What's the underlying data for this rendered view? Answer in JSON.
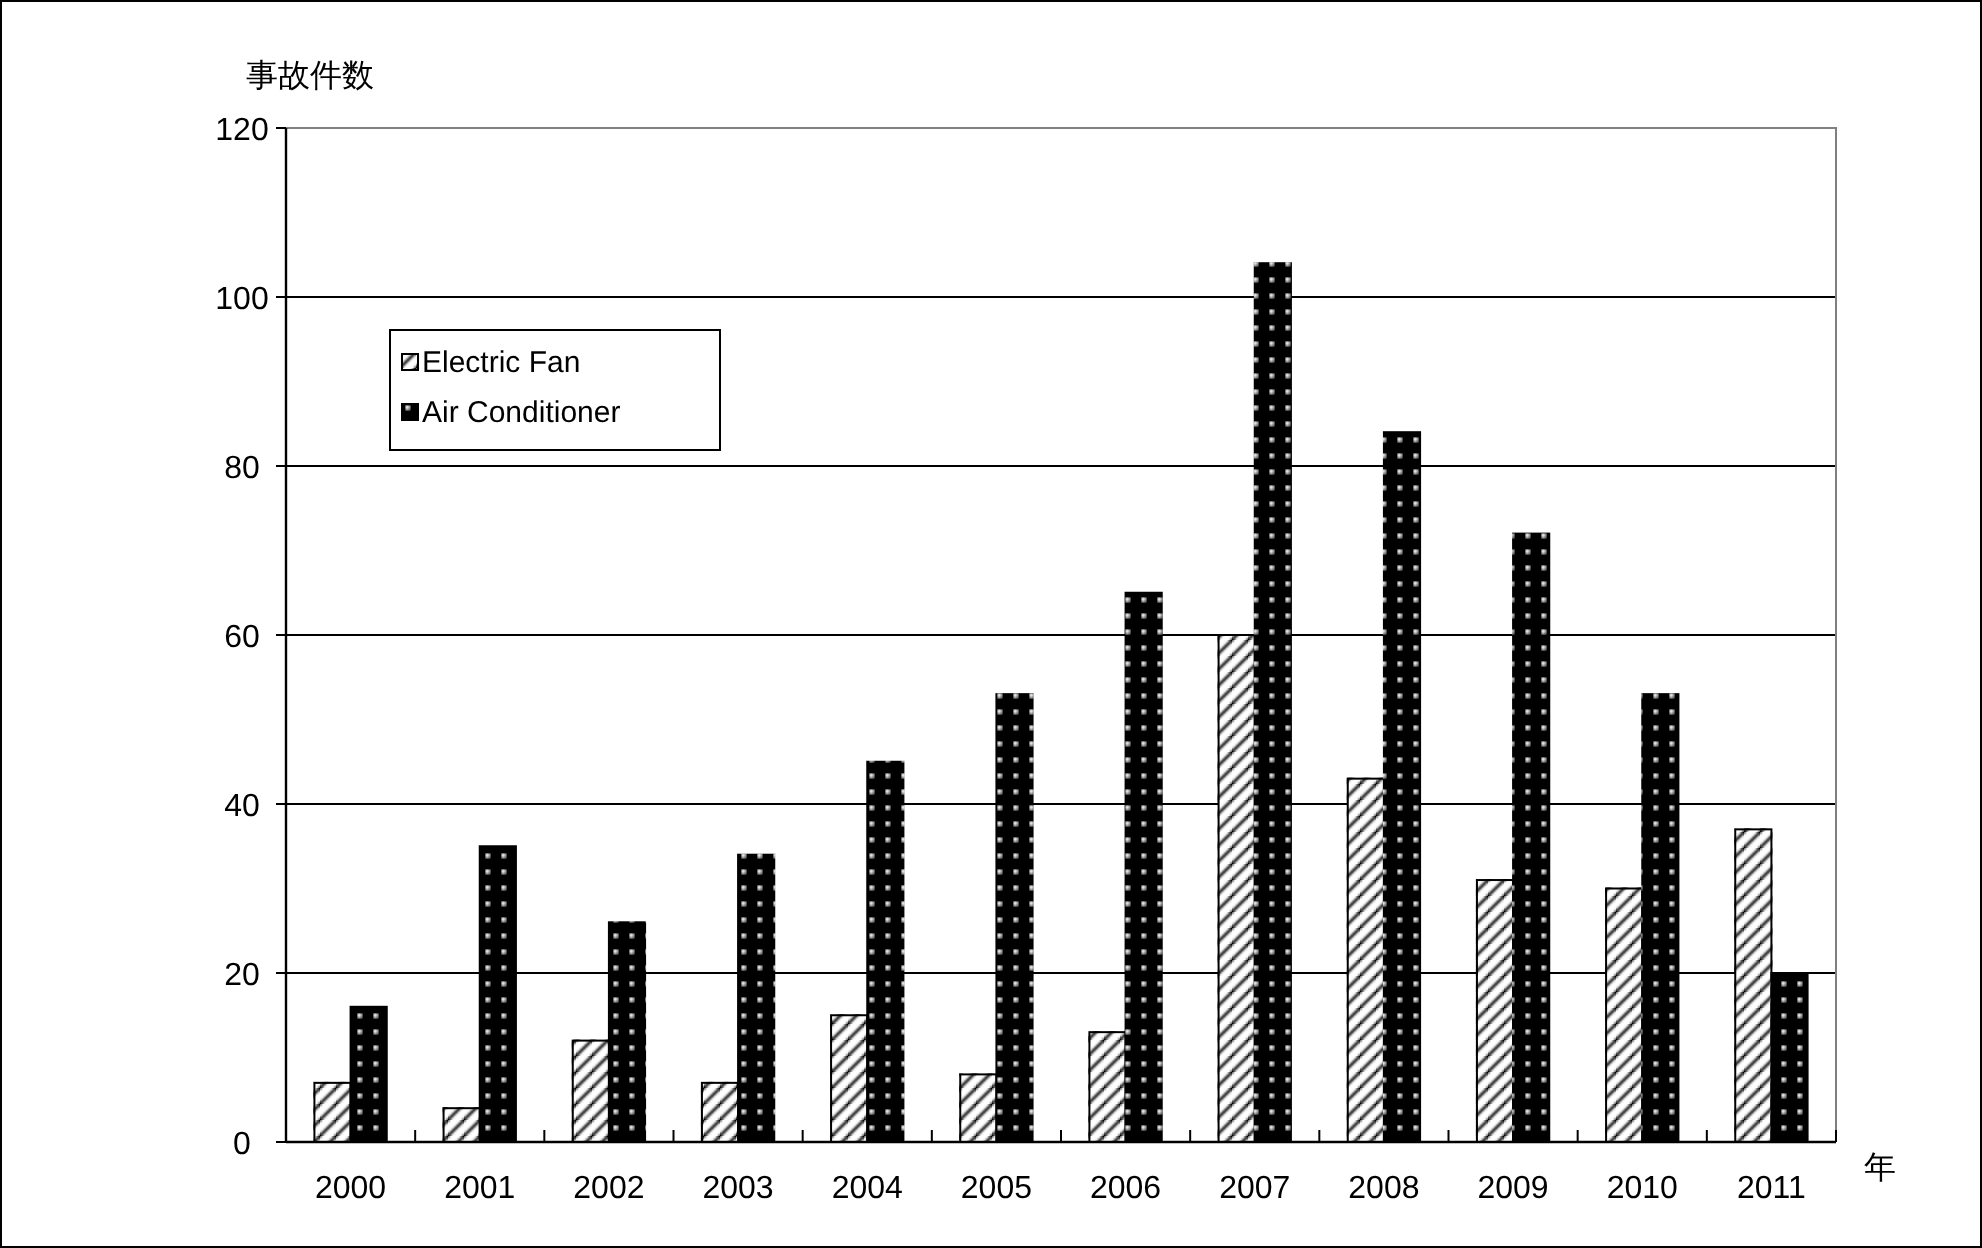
{
  "chart_data": {
    "type": "bar",
    "ylabel": "事故件数",
    "xlabel": "年",
    "categories": [
      "2000",
      "2001",
      "2002",
      "2003",
      "2004",
      "2005",
      "2006",
      "2007",
      "2008",
      "2009",
      "2010",
      "2011"
    ],
    "series": [
      {
        "name": "Electric Fan",
        "color": "#ffffff",
        "values": [
          7,
          4,
          12,
          7,
          15,
          8,
          13,
          60,
          43,
          31,
          30,
          37
        ]
      },
      {
        "name": "Air Conditioner",
        "color": "#000000",
        "values": [
          16,
          35,
          26,
          34,
          45,
          53,
          65,
          104,
          84,
          72,
          53,
          20
        ]
      }
    ],
    "ylim": [
      0,
      120
    ],
    "yticks": [
      0,
      20,
      40,
      60,
      80,
      100,
      120
    ],
    "grid": "y",
    "legend": "top left"
  }
}
